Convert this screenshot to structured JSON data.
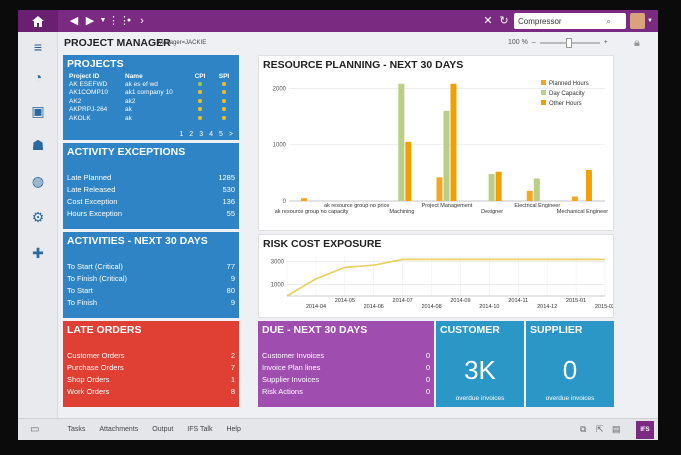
{
  "topbar": {
    "search_value": "Compressor",
    "icons": [
      "home-icon",
      "back-icon",
      "forward-icon",
      "grid-icon",
      "close-icon",
      "refresh-icon",
      "search-icon"
    ]
  },
  "header": {
    "title": "PROJECT MANAGER",
    "subtitle": "Manager=JACKIE",
    "zoom": "100 %",
    "zoom_minus": "–",
    "zoom_plus": "+"
  },
  "projects": {
    "title": "PROJECTS",
    "columns": [
      "Project ID",
      "Name",
      "CPI",
      "SPI"
    ],
    "rows": [
      {
        "id": "AK ESEFWD",
        "name": "ak es ef wd"
      },
      {
        "id": "AK1COMP10",
        "name": "ak1 company 10"
      },
      {
        "id": "AK2",
        "name": "ak2"
      },
      {
        "id": "AKPRPJ-264",
        "name": "ak"
      },
      {
        "id": "AKOLK",
        "name": "ak"
      }
    ],
    "pages": [
      "1",
      "2",
      "3",
      "4",
      "5",
      ">"
    ]
  },
  "activity_exceptions": {
    "title": "ACTIVITY EXCEPTIONS",
    "rows": [
      {
        "label": "Late Planned",
        "value": "1285"
      },
      {
        "label": "Late Released",
        "value": "530"
      },
      {
        "label": "Cost Exception",
        "value": "136"
      },
      {
        "label": "Hours Exception",
        "value": "55"
      }
    ]
  },
  "activities": {
    "title": "ACTIVITIES - NEXT 30 DAYS",
    "rows": [
      {
        "label": "To Start (Critical)",
        "value": "77"
      },
      {
        "label": "To Finish (Critical)",
        "value": "9"
      },
      {
        "label": "To Start",
        "value": "80"
      },
      {
        "label": "To Finish",
        "value": "9"
      }
    ]
  },
  "late_orders": {
    "title": "LATE ORDERS",
    "rows": [
      {
        "label": "Customer Orders",
        "value": "2"
      },
      {
        "label": "Purchase Orders",
        "value": "7"
      },
      {
        "label": "Shop Orders",
        "value": "1"
      },
      {
        "label": "Work Orders",
        "value": "8"
      }
    ]
  },
  "due": {
    "title": "DUE - NEXT 30 DAYS",
    "rows": [
      {
        "label": "Customer Invoices",
        "value": "0"
      },
      {
        "label": "Invoice Plan lines",
        "value": "0"
      },
      {
        "label": "Supplier Invoices",
        "value": "0"
      },
      {
        "label": "Risk Actions",
        "value": "0"
      }
    ]
  },
  "customer": {
    "title": "CUSTOMER",
    "value": "3K",
    "caption": "overdue invoices"
  },
  "supplier": {
    "title": "SUPPLIER",
    "value": "0",
    "caption": "overdue invoices"
  },
  "resource_chart": {
    "title": "RESOURCE PLANNING - NEXT 30 DAYS"
  },
  "risk_chart": {
    "title": "RISK COST EXPOSURE"
  },
  "chart_data": [
    {
      "type": "bar",
      "title": "RESOURCE PLANNING - NEXT 30 DAYS",
      "categories": [
        "ak resource group no capacity",
        "ak resource group no price",
        "Machining",
        "Project Management",
        "Designer",
        "Electrical Engineer",
        "Mechanical Engineer"
      ],
      "series": [
        {
          "name": "Planned Hours",
          "values": [
            50,
            0,
            0,
            420,
            0,
            180,
            80
          ],
          "color": "#f5a623"
        },
        {
          "name": "Day Capacity",
          "values": [
            0,
            0,
            2080,
            1600,
            480,
            400,
            0
          ],
          "color": "#b9cf85"
        },
        {
          "name": "Other Hours",
          "values": [
            0,
            0,
            1050,
            2080,
            520,
            0,
            550
          ],
          "color": "#f5a623"
        }
      ],
      "series_colors": [
        "#f5a623",
        "#b9cf85",
        "#f0a000"
      ],
      "yticks": [
        0,
        1000,
        2000
      ],
      "ylim": [
        0,
        2200
      ],
      "legend": "top-right",
      "grid": true
    },
    {
      "type": "line",
      "title": "RISK COST EXPOSURE",
      "x": [
        "2014-03",
        "2014-04",
        "2014-05",
        "2014-06",
        "2014-07",
        "2014-08",
        "2014-09",
        "2014-10",
        "2014-11",
        "2014-12",
        "2015-01",
        "2015-02"
      ],
      "xticks": [
        "2014-04",
        "2014-06",
        "2014-08",
        "2014-10",
        "2014-12",
        "2015-02"
      ],
      "xticks_top": [
        "2014-05",
        "2014-07",
        "2014-09",
        "2014-11",
        "2015-01"
      ],
      "values": [
        0,
        1500,
        2500,
        2700,
        3200,
        3200,
        3200,
        3200,
        3200,
        3200,
        3200,
        3200
      ],
      "yticks": [
        1000,
        3000
      ],
      "ylim": [
        0,
        3500
      ],
      "color": "#e7cf5a",
      "grid": true
    }
  ],
  "bottombar": {
    "items": [
      "Tasks",
      "Attachments",
      "Output",
      "IFS Talk",
      "Help"
    ],
    "badge": "IFS"
  }
}
